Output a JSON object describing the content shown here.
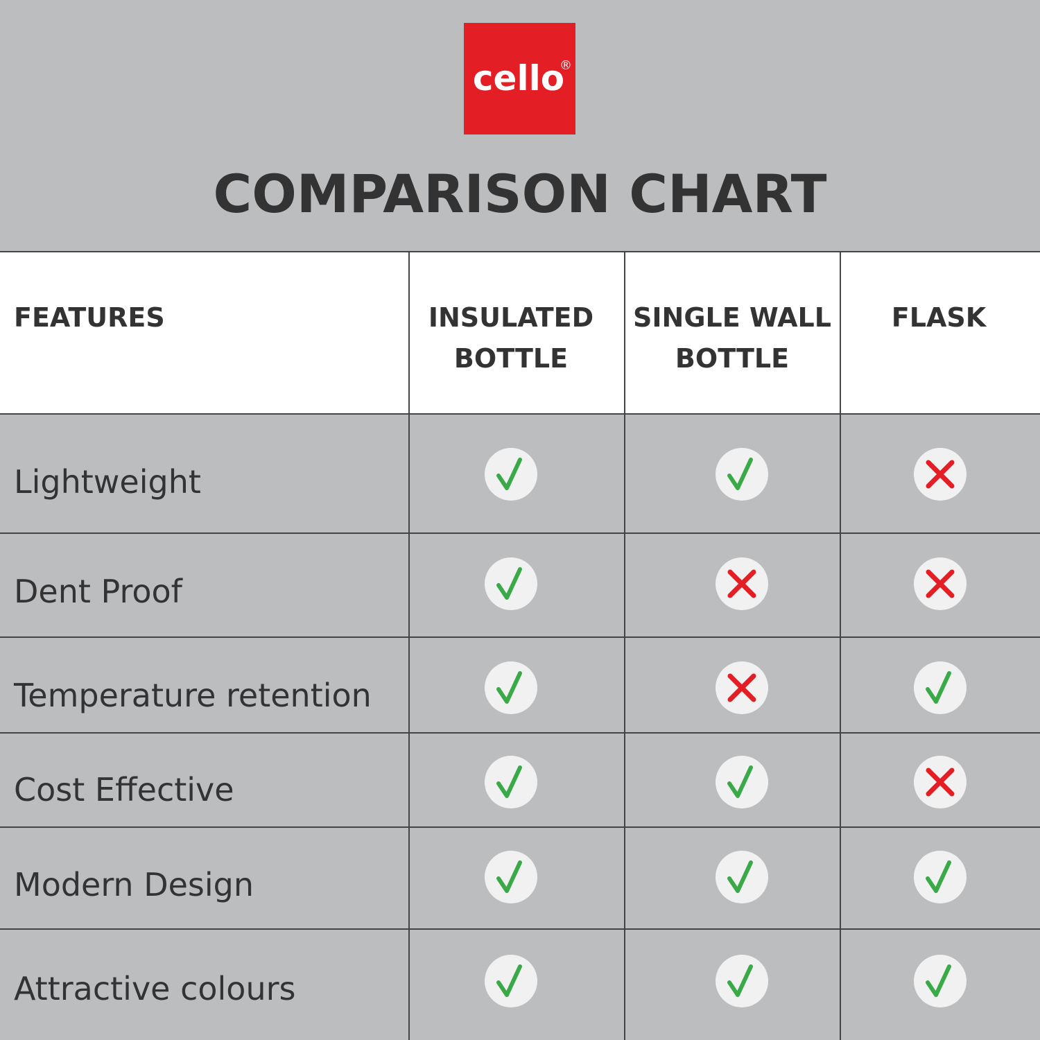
{
  "logo": {
    "text": "cello",
    "mark": "®"
  },
  "title": "COMPARISON CHART",
  "table": {
    "header": "FEATURES",
    "columns": [
      [
        "INSULATED",
        "BOTTLE"
      ],
      [
        "SINGLE WALL",
        "BOTTLE"
      ],
      [
        "FLASK"
      ]
    ],
    "rows": [
      {
        "feature": "Lightweight",
        "values": [
          true,
          true,
          false
        ]
      },
      {
        "feature": "Dent Proof",
        "values": [
          true,
          false,
          false
        ]
      },
      {
        "feature": "Temperature retention",
        "values": [
          true,
          false,
          true
        ]
      },
      {
        "feature": "Cost Effective",
        "values": [
          true,
          true,
          false
        ]
      },
      {
        "feature": "Modern Design",
        "values": [
          true,
          true,
          true
        ]
      },
      {
        "feature": "Attractive colours",
        "values": [
          true,
          true,
          true
        ]
      }
    ]
  }
}
